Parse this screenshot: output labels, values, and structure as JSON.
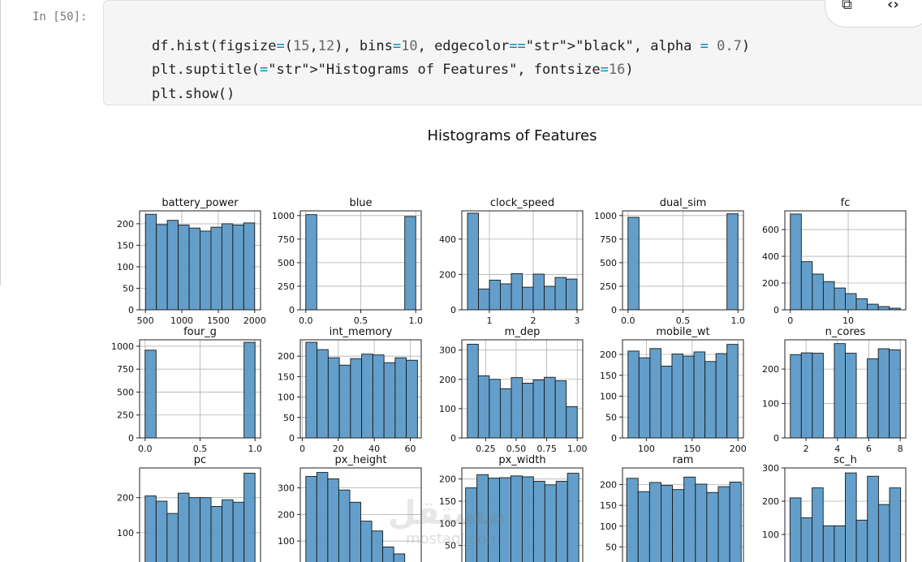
{
  "cell": {
    "prompt": "In [50]:",
    "code": [
      "df.hist(figsize=(15,12), bins=10, edgecolor=\"black\", alpha = 0.7)",
      "plt.suptitle(\"Histograms of Features\", fontsize=16)",
      "plt.show()"
    ]
  },
  "toolbar": {
    "icons": [
      "link-icon",
      "code-icon"
    ],
    "link_glyph": "⧉",
    "code_glyph": "‹›"
  },
  "figure_title": "Histograms of Features",
  "watermark": {
    "text": "مستقل",
    "sub": "mostaql.com"
  },
  "colors": {
    "bar": "#5b9ac7",
    "edge": "#1a1a1a",
    "grid": "#b0b0b0"
  },
  "chart_data": [
    {
      "type": "bar",
      "title": "battery_power",
      "xlim": [
        420,
        2080
      ],
      "ylim": [
        0,
        230
      ],
      "yticks": [
        0,
        50,
        100,
        150,
        200
      ],
      "xticks": [
        500,
        1000,
        1500,
        2000
      ],
      "edges": [
        501,
        650.8,
        800.6,
        950.4,
        1100.2,
        1250,
        1399.8,
        1549.6,
        1699.4,
        1849.2,
        1999
      ],
      "values": [
        222,
        198,
        208,
        197,
        190,
        183,
        192,
        200,
        197,
        202
      ]
    },
    {
      "type": "bar",
      "title": "blue",
      "xlim": [
        -0.05,
        1.05
      ],
      "ylim": [
        0,
        1050
      ],
      "yticks": [
        0,
        250,
        500,
        750,
        1000
      ],
      "xticks": [
        0.0,
        0.5,
        1.0
      ],
      "ticklabels": [
        "0.0",
        "0.5",
        "1.0"
      ],
      "edges": [
        0,
        0.1,
        0.2,
        0.3,
        0.4,
        0.5,
        0.6,
        0.7,
        0.8,
        0.9,
        1.0
      ],
      "values": [
        1010,
        0,
        0,
        0,
        0,
        0,
        0,
        0,
        0,
        990
      ]
    },
    {
      "type": "bar",
      "title": "clock_speed",
      "xlim": [
        0.37,
        3.13
      ],
      "ylim": [
        0,
        560
      ],
      "yticks": [
        0,
        200,
        400
      ],
      "xticks": [
        1,
        2,
        3
      ],
      "edges": [
        0.5,
        0.75,
        1.0,
        1.25,
        1.5,
        1.75,
        2.0,
        2.25,
        2.5,
        2.75,
        3.0
      ],
      "values": [
        547,
        118,
        168,
        147,
        205,
        128,
        202,
        133,
        183,
        174
      ]
    },
    {
      "type": "bar",
      "title": "dual_sim",
      "xlim": [
        -0.05,
        1.05
      ],
      "ylim": [
        0,
        1050
      ],
      "yticks": [
        0,
        250,
        500,
        750,
        1000
      ],
      "xticks": [
        0.0,
        0.5,
        1.0
      ],
      "ticklabels": [
        "0.0",
        "0.5",
        "1.0"
      ],
      "edges": [
        0,
        0.1,
        0.2,
        0.3,
        0.4,
        0.5,
        0.6,
        0.7,
        0.8,
        0.9,
        1.0
      ],
      "values": [
        981,
        0,
        0,
        0,
        0,
        0,
        0,
        0,
        0,
        1019
      ]
    },
    {
      "type": "bar",
      "title": "fc",
      "xlim": [
        -0.95,
        19.95
      ],
      "ylim": [
        0,
        740
      ],
      "yticks": [
        0,
        200,
        400,
        600
      ],
      "xticks": [
        0,
        10
      ],
      "edges": [
        0,
        1.9,
        3.8,
        5.7,
        7.6,
        9.5,
        11.4,
        13.3,
        15.2,
        17.1,
        19
      ],
      "values": [
        716,
        360,
        267,
        211,
        163,
        121,
        83,
        42,
        24,
        12
      ]
    },
    {
      "type": "bar",
      "title": "four_g",
      "xlim": [
        -0.05,
        1.05
      ],
      "ylim": [
        0,
        1070
      ],
      "yticks": [
        0,
        250,
        500,
        750,
        1000
      ],
      "xticks": [
        0.0,
        0.5,
        1.0
      ],
      "ticklabels": [
        "0.0",
        "0.5",
        "1.0"
      ],
      "edges": [
        0,
        0.1,
        0.2,
        0.3,
        0.4,
        0.5,
        0.6,
        0.7,
        0.8,
        0.9,
        1.0
      ],
      "values": [
        957,
        0,
        0,
        0,
        0,
        0,
        0,
        0,
        0,
        1043
      ]
    },
    {
      "type": "bar",
      "title": "int_memory",
      "xlim": [
        -1.1,
        66.1
      ],
      "ylim": [
        0,
        240
      ],
      "yticks": [
        0,
        50,
        100,
        150,
        200
      ],
      "xticks": [
        0,
        20,
        40,
        60
      ],
      "edges": [
        2,
        8.2,
        14.4,
        20.6,
        26.8,
        33,
        39.2,
        45.4,
        51.6,
        57.8,
        64
      ],
      "values": [
        234,
        216,
        196,
        178,
        194,
        205,
        203,
        184,
        196,
        190
      ]
    },
    {
      "type": "bar",
      "title": "m_dep",
      "xlim": [
        0.055,
        1.045
      ],
      "ylim": [
        0,
        335
      ],
      "yticks": [
        0,
        100,
        200,
        300
      ],
      "xticks": [
        0.25,
        0.5,
        0.75,
        1.0
      ],
      "ticklabels": [
        "0.25",
        "0.50",
        "0.75",
        "1.00"
      ],
      "edges": [
        0.1,
        0.19,
        0.28,
        0.37,
        0.46,
        0.55,
        0.64,
        0.73,
        0.82,
        0.91,
        1.0
      ],
      "values": [
        320,
        212,
        200,
        168,
        206,
        187,
        198,
        207,
        195,
        107
      ]
    },
    {
      "type": "bar",
      "title": "mobile_wt",
      "xlim": [
        74,
        206
      ],
      "ylim": [
        0,
        235
      ],
      "yticks": [
        0,
        50,
        100,
        150,
        200
      ],
      "xticks": [
        100,
        150,
        200
      ],
      "edges": [
        80,
        92,
        104,
        116,
        128,
        140,
        152,
        164,
        176,
        188,
        200
      ],
      "values": [
        208,
        192,
        214,
        172,
        201,
        196,
        206,
        183,
        202,
        224
      ]
    },
    {
      "type": "bar",
      "title": "n_cores",
      "xlim": [
        0.65,
        8.35
      ],
      "ylim": [
        0,
        285
      ],
      "yticks": [
        0,
        100,
        200
      ],
      "xticks": [
        2,
        4,
        6,
        8
      ],
      "edges": [
        1,
        1.7,
        2.4,
        3.1,
        3.8,
        4.5,
        5.2,
        5.9,
        6.6,
        7.3,
        8
      ],
      "values": [
        242,
        247,
        246,
        0,
        274,
        246,
        0,
        230,
        259,
        256
      ]
    },
    {
      "type": "bar",
      "title": "pc",
      "xlim": [
        -1,
        21
      ],
      "ylim": [
        0,
        285
      ],
      "yticks": [
        100,
        200
      ],
      "xticks": [],
      "edges": [
        0,
        2,
        4,
        6,
        8,
        10,
        12,
        14,
        16,
        18,
        20
      ],
      "values": [
        205,
        190,
        155,
        213,
        200,
        200,
        175,
        194,
        187,
        270
      ]
    },
    {
      "type": "bar",
      "title": "px_height",
      "xlim": [
        -98,
        2058
      ],
      "ylim": [
        0,
        375
      ],
      "yticks": [
        100,
        200,
        300
      ],
      "xticks": [],
      "edges": [
        0,
        196,
        392,
        588,
        784,
        980,
        1176,
        1372,
        1568,
        1764,
        1960
      ],
      "values": [
        343,
        358,
        334,
        292,
        246,
        175,
        138,
        78,
        52,
        15
      ]
    },
    {
      "type": "bar",
      "title": "px_width",
      "xlim": [
        450,
        2050
      ],
      "ylim": [
        0,
        225
      ],
      "yticks": [
        50,
        100,
        150,
        200
      ],
      "xticks": [],
      "edges": [
        500,
        649.8,
        799.6,
        949.4,
        1099.2,
        1249,
        1398.8,
        1548.6,
        1698.4,
        1848.2,
        1998
      ],
      "values": [
        180,
        210,
        202,
        203,
        207,
        205,
        195,
        187,
        195,
        213
      ]
    },
    {
      "type": "bar",
      "title": "ram",
      "xlim": [
        120,
        4060
      ],
      "ylim": [
        0,
        240
      ],
      "yticks": [
        50,
        100,
        150,
        200
      ],
      "xticks": [],
      "edges": [
        256,
        629,
        1002,
        1375,
        1748,
        2121,
        2494,
        2867,
        3240,
        3613,
        3986
      ],
      "values": [
        215,
        183,
        205,
        198,
        188,
        218,
        201,
        181,
        195,
        206
      ]
    },
    {
      "type": "bar",
      "title": "sc_h",
      "xlim": [
        4.35,
        19.65
      ],
      "ylim": [
        0,
        300
      ],
      "yticks": [
        100,
        200,
        300
      ],
      "xticks": [],
      "edges": [
        5,
        6.4,
        7.8,
        9.2,
        10.6,
        12,
        13.4,
        14.8,
        16.2,
        17.6,
        19
      ],
      "values": [
        210,
        150,
        240,
        126,
        126,
        285,
        143,
        275,
        190,
        240
      ]
    }
  ]
}
